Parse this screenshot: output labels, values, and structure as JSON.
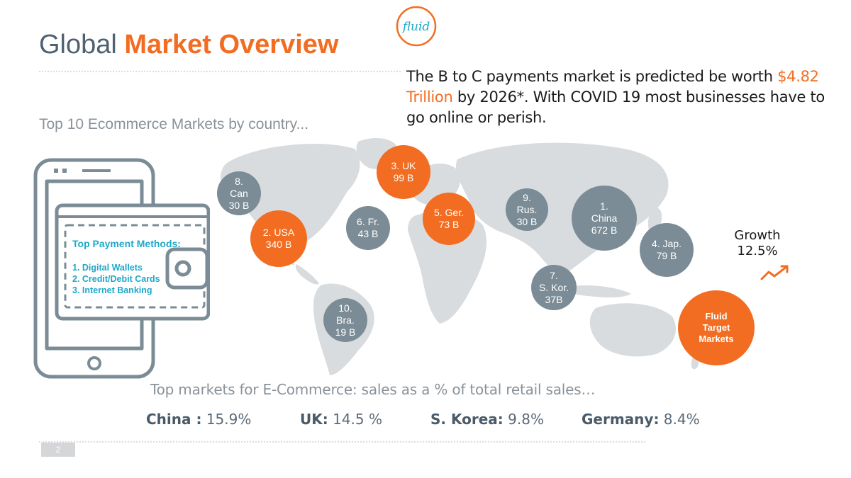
{
  "header": {
    "title_plain": "Global ",
    "title_highlight": "Market Overview",
    "logo_text": "fluid"
  },
  "headline": {
    "part1": "The  B to C payments market is predicted be worth ",
    "amount": "$4.82 Trillion",
    "part2": " by 2026*. With COVID 19 most businesses have  to go online or perish."
  },
  "subtitle": "Top 10 Ecommerce Markets by country...",
  "markets": [
    {
      "rank": "1.",
      "name": "China",
      "value": "672 B",
      "color": "grey"
    },
    {
      "rank": "2.",
      "name": "USA",
      "value": "340 B",
      "color": "orange"
    },
    {
      "rank": "3.",
      "name": "UK",
      "value": "99 B",
      "color": "orange"
    },
    {
      "rank": "4.",
      "name": "Jap.",
      "value": "79 B",
      "color": "grey"
    },
    {
      "rank": "5.",
      "name": "Ger.",
      "value": "73 B",
      "color": "orange"
    },
    {
      "rank": "6.",
      "name": "Fr.",
      "value": "43 B",
      "color": "grey"
    },
    {
      "rank": "7.",
      "name": "S. Kor.",
      "value": "37B",
      "color": "grey"
    },
    {
      "rank": "8.",
      "name": "Can",
      "value": "30 B",
      "color": "grey"
    },
    {
      "rank": "9.",
      "name": "Rus.",
      "value": "30 B",
      "color": "grey"
    },
    {
      "rank": "10.",
      "name": "Bra.",
      "value": "19 B",
      "color": "grey"
    }
  ],
  "growth": {
    "label": "Growth",
    "value": "12.5%"
  },
  "fluid_target": {
    "line1": "Fluid",
    "line2": "Target",
    "line3": "Markets"
  },
  "payment_methods": {
    "title": "Top Payment Methods:",
    "items": [
      "1. Digital Wallets",
      "2. Credit/Debit Cards",
      "3. Internet Banking"
    ]
  },
  "retail_share": {
    "title": "Top markets for E-Commerce: sales as a % of total retail sales…",
    "stats": [
      {
        "country": "China :",
        "value": " 15.9%"
      },
      {
        "country": "UK:",
        "value": " 14.5 %"
      },
      {
        "country": "S. Korea:",
        "value": " 9.8%"
      },
      {
        "country": "Germany:",
        "value": " 8.4%"
      }
    ]
  },
  "page_number": "2",
  "colors": {
    "accent": "#f26d21",
    "bubble_grey": "#7b8c96",
    "title_blue": "#4f6272",
    "teal_text": "#1ea8c9"
  }
}
